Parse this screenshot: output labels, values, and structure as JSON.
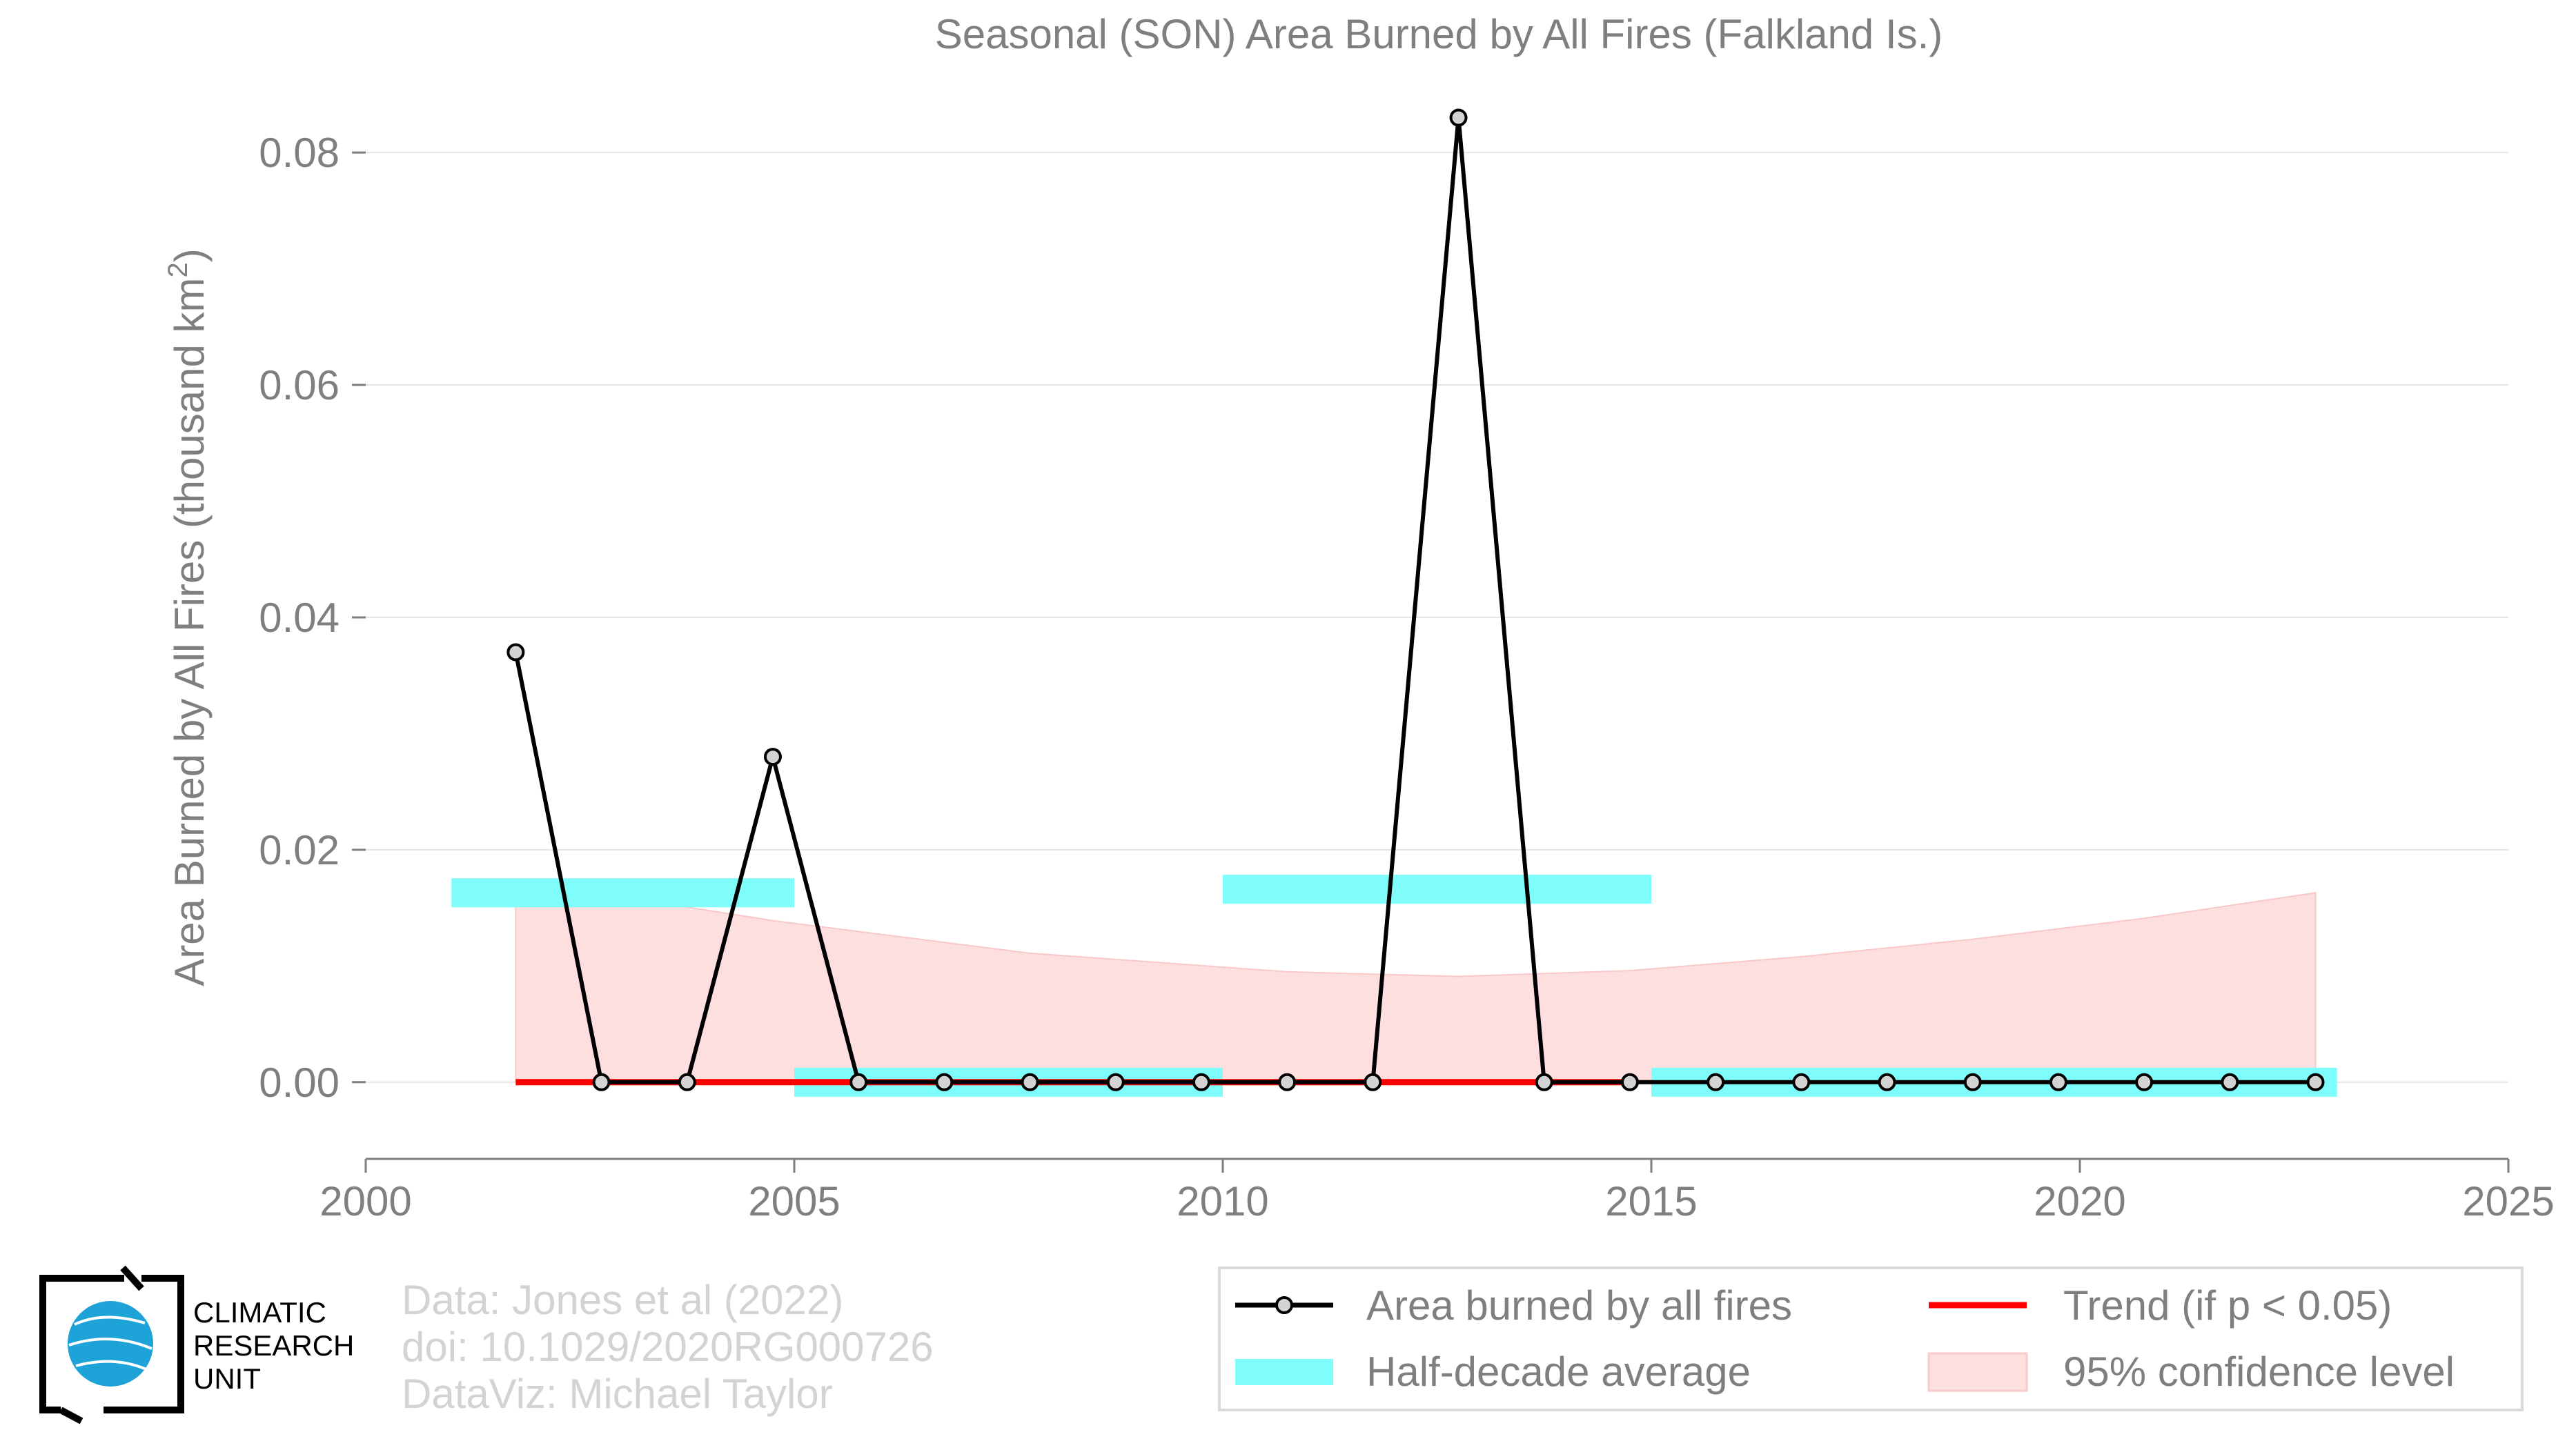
{
  "chart_data": {
    "type": "line",
    "title": "Seasonal (SON) Area Burned by All Fires (Falkland Is.)",
    "ylabel_main": "Area Burned by All Fires (thousand km",
    "ylabel_sup": "2",
    "ylabel_close": ")",
    "xlabel": "",
    "xlim": [
      2000,
      2025
    ],
    "ylim": [
      -0.0066,
      0.086
    ],
    "xticks": [
      2000,
      2005,
      2010,
      2015,
      2020,
      2025
    ],
    "xtick_labels": [
      "2000",
      "2005",
      "2010",
      "2015",
      "2020",
      "2025"
    ],
    "yticks": [
      0.0,
      0.02,
      0.04,
      0.06,
      0.08
    ],
    "ytick_labels": [
      "0.00",
      "0.02",
      "0.04",
      "0.06",
      "0.08"
    ],
    "grid": true,
    "series": [
      {
        "name": "Area burned by all fires",
        "color": "#000000",
        "marker_fill": "#d3d3d3",
        "x": [
          2001.75,
          2002.75,
          2003.75,
          2004.75,
          2005.75,
          2006.75,
          2007.75,
          2008.75,
          2009.75,
          2010.75,
          2011.75,
          2012.75,
          2013.75,
          2014.75,
          2015.75,
          2016.75,
          2017.75,
          2018.75,
          2019.75,
          2020.75,
          2021.75,
          2022.75
        ],
        "y": [
          0.037,
          0.0,
          0.0,
          0.028,
          0.0,
          0.0,
          0.0,
          0.0,
          0.0,
          0.0,
          0.0,
          0.083,
          0.0,
          0.0,
          0.0,
          0.0,
          0.0,
          0.0,
          0.0,
          0.0,
          0.0,
          0.0
        ]
      }
    ],
    "half_decade_average": {
      "name": "Half-decade average",
      "color": "#7ffcfc",
      "segments": [
        {
          "x0": 2001.0,
          "x1": 2005.0,
          "y": 0.0163
        },
        {
          "x0": 2005.0,
          "x1": 2010.0,
          "y": 0.0
        },
        {
          "x0": 2010.0,
          "x1": 2015.0,
          "y": 0.0166
        },
        {
          "x0": 2015.0,
          "x1": 2023.0,
          "y": 0.0
        }
      ]
    },
    "trend": {
      "name": "Trend (if p < 0.05)",
      "color": "#ff0000",
      "x": [
        2001.75,
        2014.75
      ],
      "y": [
        0.0,
        0.0
      ]
    },
    "confidence_band": {
      "name": "95% confidence level",
      "color": "#fdd9d9",
      "x": [
        2001.75,
        2004.75,
        2007.75,
        2010.75,
        2012.75,
        2014.75,
        2016.75,
        2018.75,
        2020.75,
        2022.75
      ],
      "upper": [
        0.0174,
        0.0139,
        0.0111,
        0.0095,
        0.0091,
        0.0096,
        0.0108,
        0.0123,
        0.0141,
        0.0163
      ],
      "lower": [
        0.0,
        0.0,
        0.0,
        0.0,
        0.0,
        0.0,
        0.0,
        0.0,
        0.0,
        0.0
      ]
    },
    "legend_position": "bottom-right"
  },
  "legend": {
    "item_line": "Area burned by all fires",
    "item_trend": "Trend (if p < 0.05)",
    "item_half": "Half-decade average",
    "item_conf": "95% confidence level"
  },
  "footer": {
    "logo_line1": "CLIMATIC",
    "logo_line2": "RESEARCH",
    "logo_line3": "UNIT",
    "credit_line1": "Data: Jones et al (2022)",
    "credit_line2": "doi: 10.1029/2020RG000726",
    "credit_line3": "DataViz: Michael Taylor"
  },
  "colors": {
    "axis_text": "#7f7f7f",
    "grid": "#e5e5e5",
    "credit_text": "#d3d3d3"
  }
}
